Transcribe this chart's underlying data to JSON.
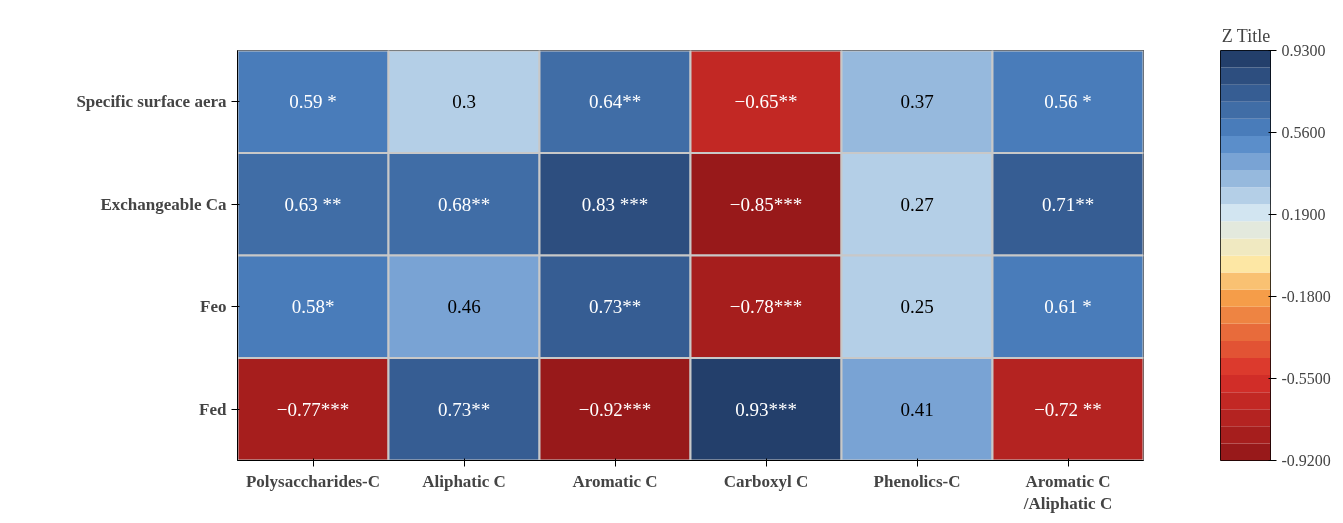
{
  "chart_data": {
    "type": "heatmap",
    "clabel": "Z Title",
    "categories": [
      "Polysaccharides-C",
      "Aliphatic C",
      "Aromatic C",
      "Carboxyl C",
      "Phenolics-C",
      "Aromatic C\n/Aliphatic C"
    ],
    "y_categories": [
      "Specific surface aera",
      "Exchangeable Ca",
      "Feo",
      "Fed"
    ],
    "cells": [
      [
        0.59,
        0.3,
        0.64,
        -0.65,
        0.37,
        0.56
      ],
      [
        0.63,
        0.68,
        0.83,
        -0.85,
        0.27,
        0.71
      ],
      [
        0.58,
        0.46,
        0.73,
        -0.78,
        0.25,
        0.61
      ],
      [
        -0.77,
        0.73,
        -0.92,
        0.93,
        0.41,
        -0.72
      ]
    ],
    "cell_labels": [
      [
        "0.59 *",
        "0.3",
        "0.64**",
        "−0.65**",
        "0.37",
        "0.56 *"
      ],
      [
        "0.63 **",
        "0.68**",
        "0.83 ***",
        "−0.85***",
        "0.27",
        "0.71**"
      ],
      [
        "0.58*",
        "0.46",
        "0.73**",
        "−0.78***",
        "0.25",
        "0.61 *"
      ],
      [
        "−0.77***",
        "0.73**",
        "−0.92***",
        "0.93***",
        "0.41",
        "−0.72 **"
      ]
    ],
    "clim": [
      -0.92,
      0.93
    ],
    "cticks": [
      {
        "value": 0.93,
        "label": "0.9300"
      },
      {
        "value": 0.56,
        "label": "0.5600"
      },
      {
        "value": 0.19,
        "label": "0.1900"
      },
      {
        "value": -0.18,
        "label": "-0.1800"
      },
      {
        "value": -0.55,
        "label": "-0.5500"
      },
      {
        "value": -0.92,
        "label": "-0.9200"
      }
    ]
  }
}
